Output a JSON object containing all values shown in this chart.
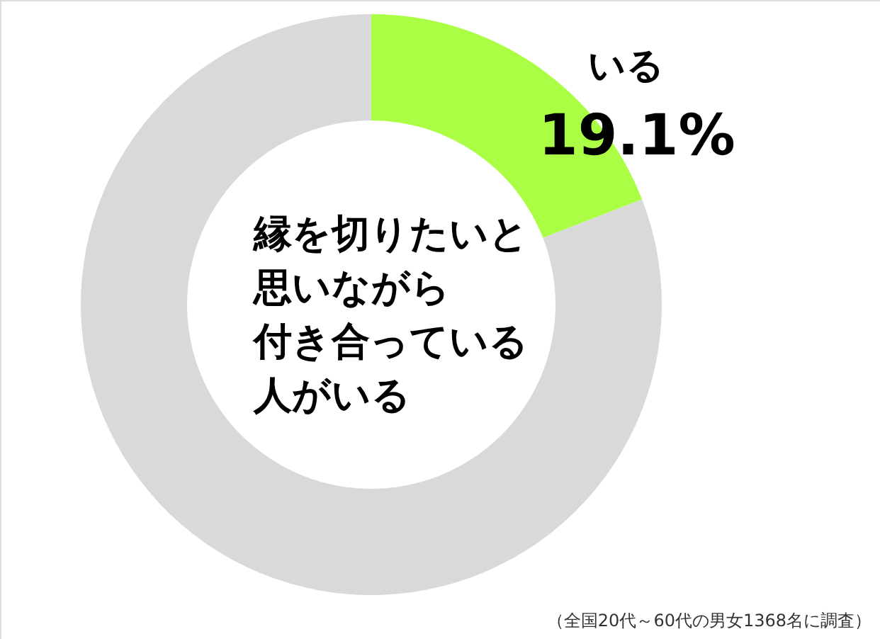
{
  "chart_data": {
    "type": "donut",
    "title": "縁を切りたいと思いながら付き合っている人がいる",
    "categories": [
      "いる",
      null
    ],
    "values": [
      19.1,
      80.9
    ],
    "colors": [
      "#aaff44",
      "#d9d9d9"
    ],
    "value_labels": [
      "19.1%",
      null
    ],
    "annotations": [
      "（全国20代～60代の男女1368名に調査）"
    ]
  }
}
